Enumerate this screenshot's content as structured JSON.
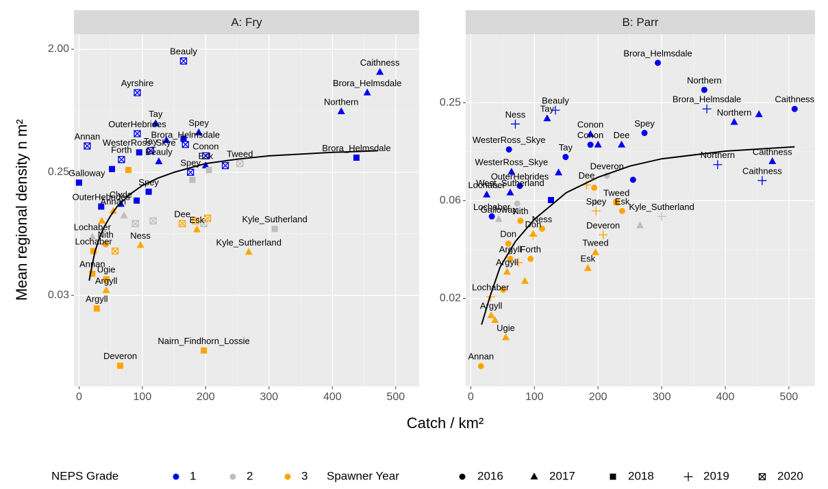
{
  "chart_data": [
    {
      "type": "scatter",
      "title": "A: Fry",
      "log_y": true,
      "grid": true,
      "xlim": [
        -8,
        537
      ],
      "ylim": [
        0.0067,
        2.58
      ],
      "xticks": [
        0,
        100,
        200,
        300,
        400,
        500
      ],
      "yticks": [
        {
          "value": 2,
          "label": "2.00"
        },
        0.25,
        {
          "value": 0.03125,
          "label": "0.03"
        }
      ],
      "x": [
        165,
        475,
        455,
        92,
        414,
        121,
        92,
        189,
        138,
        165,
        168,
        13,
        113,
        95,
        200,
        438,
        67,
        52,
        126,
        200,
        231,
        176,
        0,
        110,
        66,
        91,
        35,
        71,
        89,
        117,
        179,
        205,
        197,
        254,
        309,
        21,
        78,
        54,
        36,
        163,
        184,
        203,
        186,
        97,
        268,
        57,
        42,
        23,
        21,
        43,
        43,
        28,
        197,
        65
      ],
      "y": [
        1.64,
        1.36,
        0.96,
        0.96,
        0.7,
        0.57,
        0.48,
        0.49,
        0.43,
        0.44,
        0.4,
        0.39,
        0.36,
        0.35,
        0.33,
        0.32,
        0.31,
        0.264,
        0.3,
        0.28,
        0.28,
        0.25,
        0.21,
        0.18,
        0.146,
        0.155,
        0.14,
        0.12,
        0.105,
        0.11,
        0.22,
        0.26,
        0.105,
        0.29,
        0.096,
        0.084,
        0.26,
        0.13,
        0.11,
        0.105,
        0.11,
        0.115,
        0.095,
        0.073,
        0.065,
        0.066,
        0.074,
        0.066,
        0.045,
        0.041,
        0.034,
        0.025,
        0.0123,
        0.0095
      ],
      "labels": [
        "Beauly",
        "Caithness",
        "Brora_Helmsdale",
        "Ayrshire",
        "Northern",
        "Tay",
        "OuterHebrides",
        "Spey",
        null,
        null,
        "Brora_Helmsdale",
        "Annan",
        "Tay",
        "WesterRoss_Skye",
        "Conon",
        "Brora_Helmsdale",
        "Forth",
        null,
        "Beauly",
        "Esk",
        null,
        "Spey",
        "Galloway",
        "Spey",
        "Clyde",
        null,
        "OuterHebrides",
        null,
        null,
        null,
        null,
        null,
        null,
        "Tweed",
        "Kyle_Sutherland",
        "Lochaber",
        null,
        "Annan",
        null,
        "Dee",
        null,
        null,
        "Esk",
        "Ness",
        "Kyle_Sutherland",
        null,
        "Nith",
        "Lochaber",
        "Annan",
        "Ugie",
        "Argyll",
        "Argyll",
        "Nairn_Findhorn_Lossie",
        "Deveron"
      ],
      "grade": [
        "1",
        "1",
        "1",
        "1",
        "1",
        "1",
        "1",
        "1",
        "1",
        "1",
        "1",
        "1",
        "1",
        "1",
        "1",
        "1",
        "1",
        "1",
        "1",
        "1",
        "1",
        "1",
        "1",
        "1",
        "1",
        "1",
        "1",
        "2",
        "2",
        "2",
        "2",
        "2",
        "2",
        "2",
        "2",
        "2",
        "3",
        "3",
        "3",
        "3",
        "3",
        "3",
        "3",
        "3",
        "3",
        "3",
        "3",
        "3",
        "3",
        "3",
        "3",
        "3",
        "3",
        "3"
      ],
      "year": [
        "2020",
        "2017",
        "2017",
        "2020",
        "2017",
        "2017",
        "2020",
        "2017",
        "2017",
        "2018",
        "2020",
        "2020",
        "2020",
        "2018",
        "2020",
        "2018",
        "2020",
        "2018",
        "2017",
        "2017",
        "2020",
        "2020",
        "2018",
        "2018",
        "2017",
        "2018",
        "2018",
        "2017",
        "2020",
        "2020",
        "2018",
        "2018",
        "2020",
        "2020",
        "2018",
        "2017",
        "2018",
        "2017",
        "2017",
        "2020",
        "2020",
        "2020",
        "2017",
        "2017",
        "2017",
        "2020",
        "2016",
        "2018",
        "2018",
        "2018",
        "2017",
        "2018",
        "2018",
        "2018"
      ],
      "fit": {
        "x": [
          16,
          20,
          25,
          32,
          40,
          50,
          60,
          80,
          100,
          125,
          150,
          200,
          250,
          300,
          400,
          472
        ],
        "y": [
          0.04,
          0.05,
          0.065,
          0.082,
          0.1,
          0.12,
          0.14,
          0.172,
          0.2,
          0.227,
          0.25,
          0.29,
          0.312,
          0.33,
          0.35,
          0.36
        ]
      }
    },
    {
      "type": "scatter",
      "title": "B: Parr",
      "log_y": true,
      "grid": true,
      "xlim": [
        -8,
        541
      ],
      "ylim": [
        0.0045,
        0.66
      ],
      "xticks": [
        0,
        100,
        200,
        300,
        400,
        500
      ],
      "yticks": [
        0.25,
        {
          "value": 0.0625,
          "label": "0.06"
        },
        {
          "value": 0.015625,
          "label": "0.02"
        }
      ],
      "x": [
        294,
        367,
        371,
        509,
        414,
        453,
        133,
        120,
        70,
        273,
        188,
        188,
        200,
        237,
        60,
        149,
        474,
        388,
        64,
        138,
        255,
        458,
        77,
        62,
        25,
        126,
        33,
        214,
        196,
        73,
        44,
        266,
        300,
        182,
        194,
        229,
        238,
        197,
        208,
        196,
        184,
        112,
        98,
        98,
        78,
        59,
        94,
        62,
        75,
        57,
        85,
        51,
        31,
        32,
        38,
        55,
        16
      ],
      "y": [
        0.44,
        0.3,
        0.229,
        0.229,
        0.19,
        0.212,
        0.225,
        0.2,
        0.185,
        0.163,
        0.16,
        0.138,
        0.138,
        0.138,
        0.129,
        0.116,
        0.109,
        0.104,
        0.094,
        0.093,
        0.084,
        0.083,
        0.077,
        0.07,
        0.068,
        0.063,
        0.05,
        0.089,
        0.061,
        0.06,
        0.048,
        0.044,
        0.05,
        0.078,
        0.075,
        0.061,
        0.054,
        0.054,
        0.0385,
        0.03,
        0.024,
        0.042,
        0.039,
        0.038,
        0.047,
        0.034,
        0.0274,
        0.0274,
        0.026,
        0.0228,
        0.02,
        0.0177,
        0.016,
        0.0123,
        0.0115,
        0.009,
        0.006
      ],
      "labels": [
        "Brora_Helmsdale",
        "Northern",
        "Brora_Helmsdale",
        "Caithness",
        "Northern",
        null,
        "Beauly",
        "Tay",
        "Ness",
        "Spey",
        "Conon",
        "Conon",
        null,
        "Dee",
        "WesterRoss_Skye",
        "Tay",
        "Caithness",
        "Northern",
        "WesterRoss_Skye",
        null,
        null,
        "Caithness",
        "OuterHebrides",
        "West_Sutherland",
        "Lochaber",
        null,
        "Lochaber",
        "Deveron",
        null,
        null,
        "Galloway",
        null,
        "Kyle_Sutherland",
        "Dee",
        null,
        "Tweed",
        "Esk",
        "Spey",
        "Deveron",
        "Tweed",
        "Esk",
        "Ness",
        "Don",
        null,
        "Nith",
        "Don",
        "Forth",
        "Argyll",
        null,
        "Argyll",
        null,
        null,
        "Lochaber",
        "Argyll",
        null,
        "Ugie",
        "Annan"
      ],
      "grade": [
        "1",
        "1",
        "1",
        "1",
        "1",
        "1",
        "1",
        "1",
        "1",
        "1",
        "1",
        "1",
        "1",
        "1",
        "1",
        "1",
        "1",
        "1",
        "1",
        "1",
        "1",
        "1",
        "1",
        "1",
        "1",
        "1",
        "1",
        "2",
        "2",
        "2",
        "2",
        "2",
        "2",
        "3",
        "3",
        "3",
        "3",
        "3",
        "3",
        "3",
        "3",
        "3",
        "3",
        "3",
        "3",
        "3",
        "3",
        "3",
        "3",
        "3",
        "3",
        "3",
        "3",
        "3",
        "3",
        "3",
        "3"
      ],
      "year": [
        "2016",
        "2016",
        "2019",
        "2016",
        "2017",
        "2017",
        "2019",
        "2017",
        "2019",
        "2016",
        "2017",
        "2016",
        "2017",
        "2017",
        "2016",
        "2016",
        "2017",
        "2019",
        "2017",
        "2017",
        "2016",
        "2019",
        "2016",
        "2017",
        "2017",
        "2018",
        "2016",
        "2016",
        "2017",
        "2016",
        "2017",
        "2017",
        "2019",
        "2019",
        "2016",
        "2018",
        "2016",
        "2019",
        "2019",
        "2017",
        "2017",
        "2016",
        "2017",
        "2019",
        "2016",
        "2016",
        "2016",
        "2016",
        "2019",
        "2017",
        "2017",
        "2016",
        "2019",
        "2017",
        "2017",
        "2017",
        "2016"
      ],
      "fit": {
        "x": [
          17,
          30,
          46,
          70,
          100,
          150,
          200,
          250,
          300,
          400,
          509
        ],
        "y": [
          0.0108,
          0.016,
          0.0244,
          0.035,
          0.048,
          0.07,
          0.087,
          0.102,
          0.113,
          0.126,
          0.134
        ]
      }
    }
  ],
  "axis_titles": {
    "x": "Catch / km²",
    "y": "Mean regional density n m²"
  },
  "legends": [
    {
      "title": "NEPS Grade",
      "items": [
        {
          "label": "1",
          "color": "#0000ee"
        },
        {
          "label": "2",
          "color": "#bebebe"
        },
        {
          "label": "3",
          "color": "#ffa500"
        }
      ]
    },
    {
      "title": "Spawner Year",
      "items": [
        {
          "label": "2016",
          "shape": "circle"
        },
        {
          "label": "2017",
          "shape": "triangle"
        },
        {
          "label": "2018",
          "shape": "square"
        },
        {
          "label": "2019",
          "shape": "plus"
        },
        {
          "label": "2020",
          "shape": "square-x"
        }
      ]
    }
  ]
}
